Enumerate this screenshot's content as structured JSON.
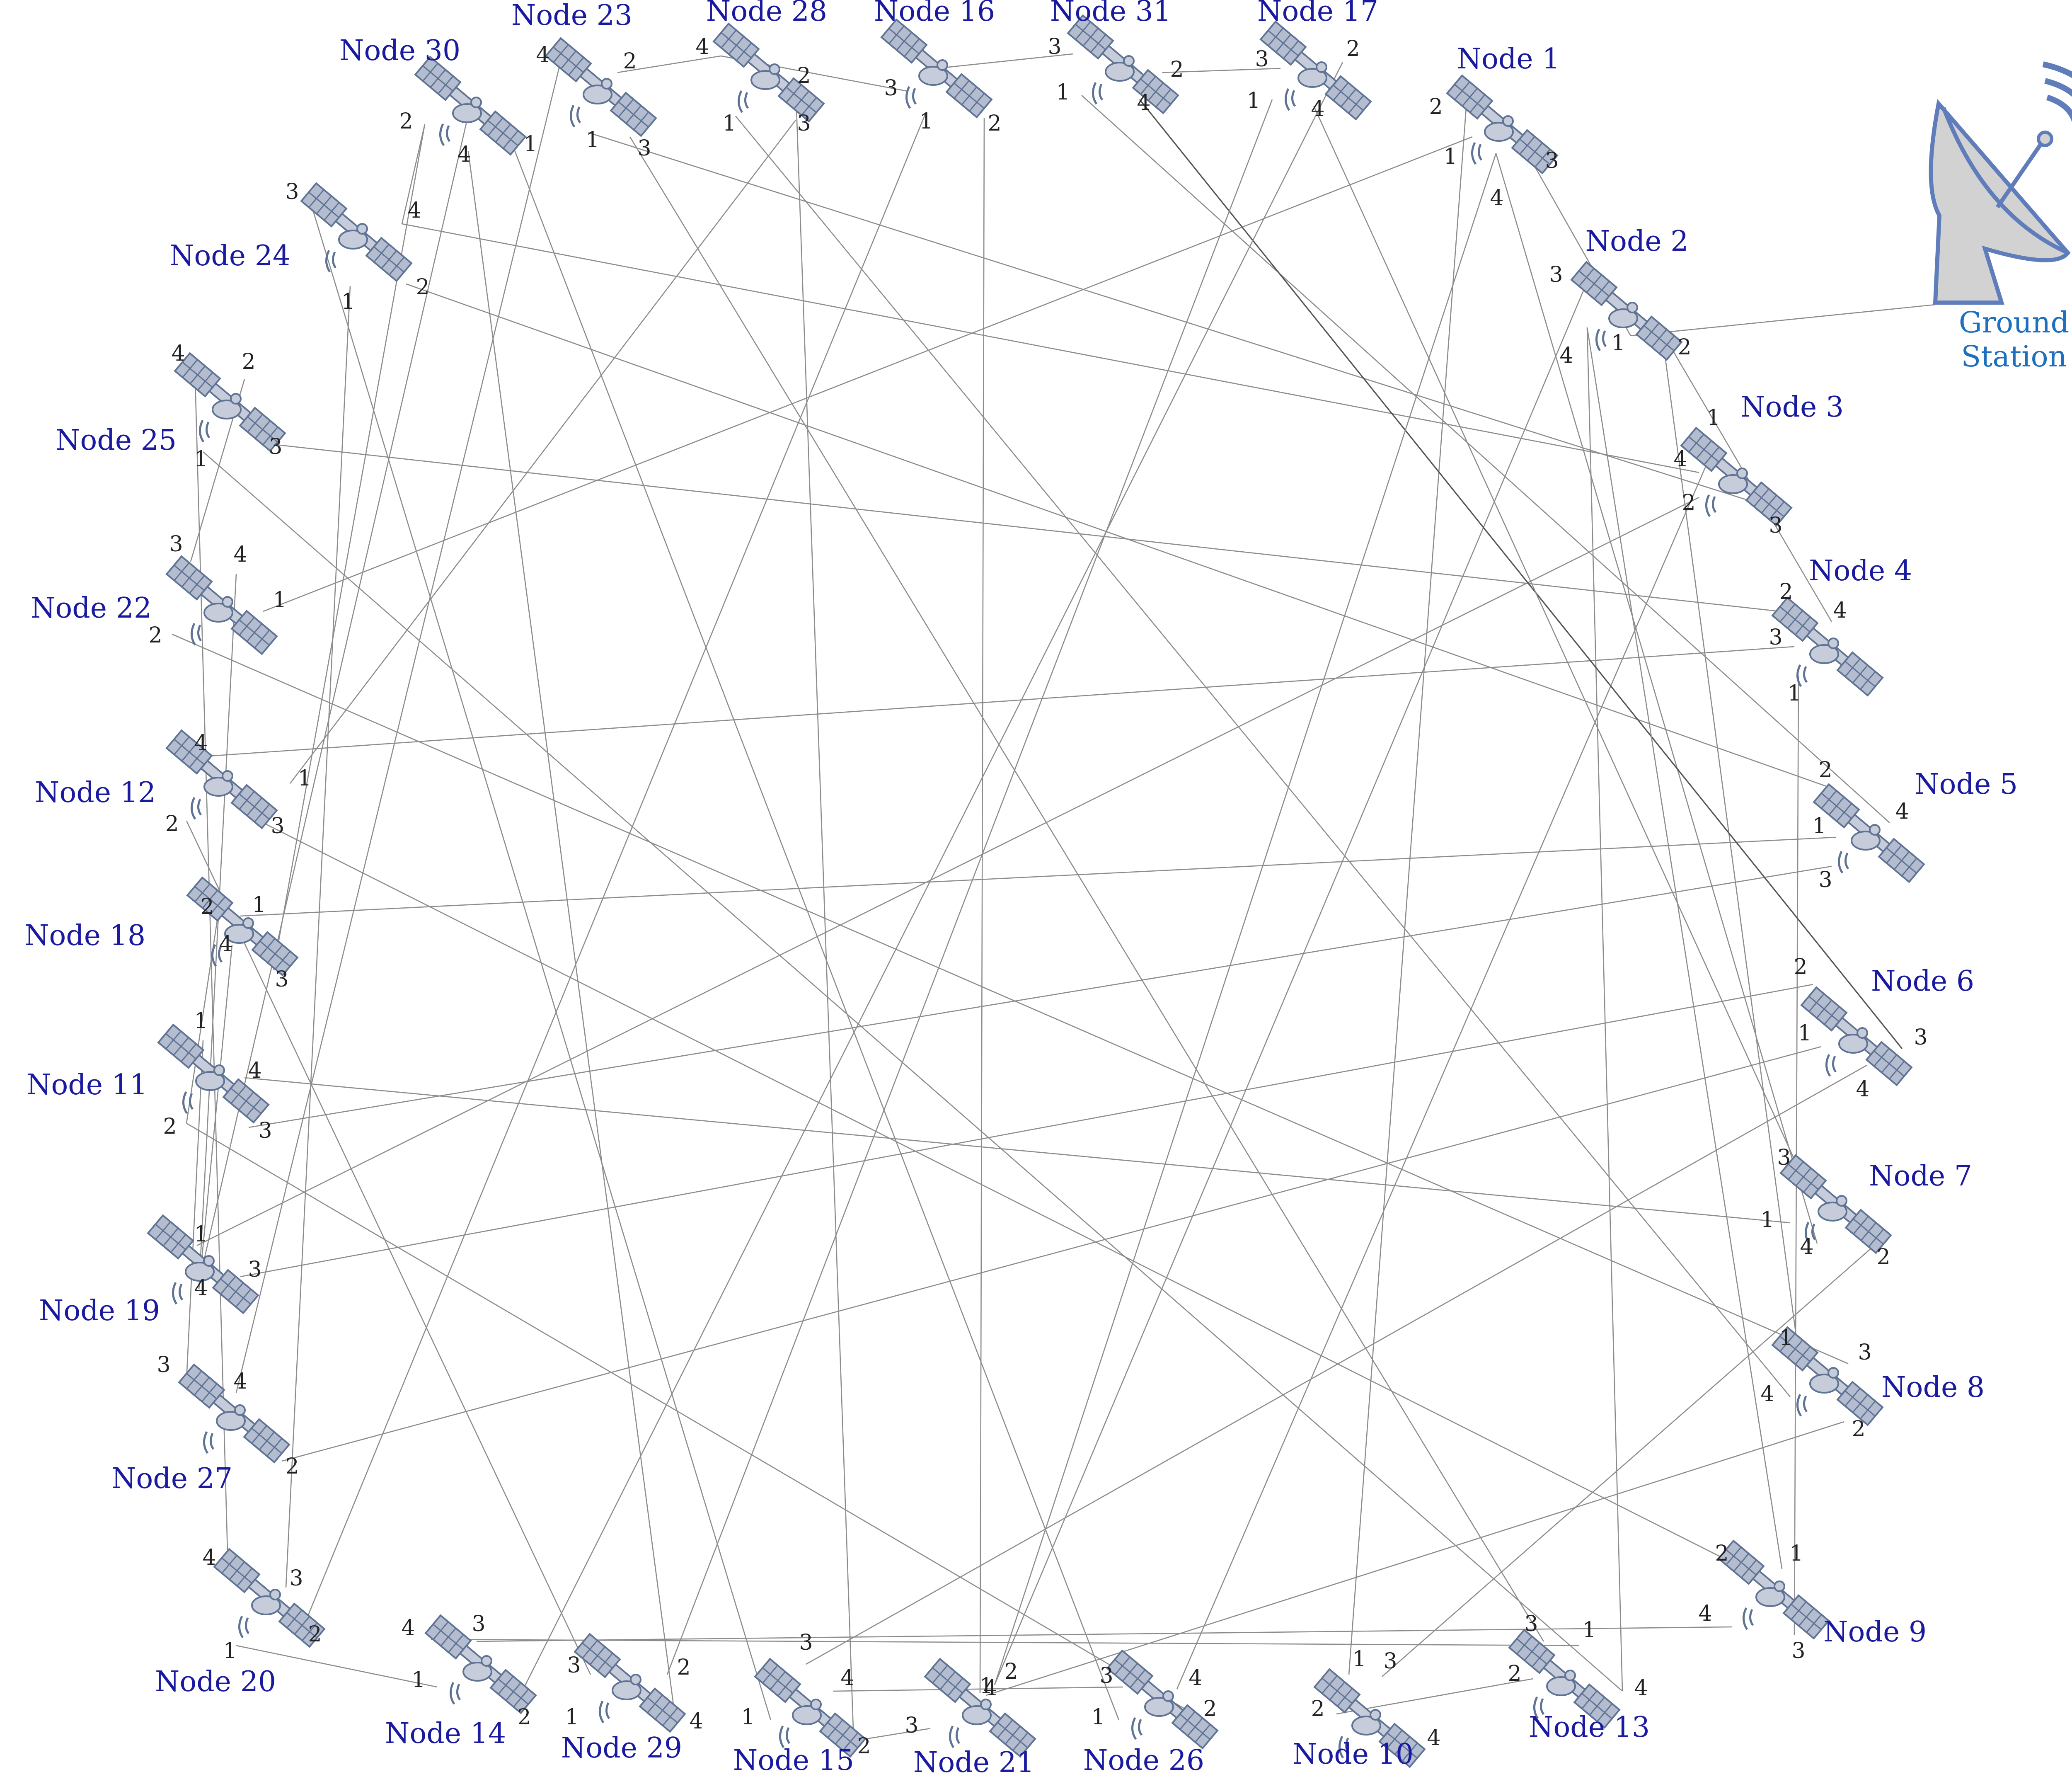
{
  "colors": {
    "node_label": "#1a1aa0",
    "ground_label": "#1f6fbf",
    "satellite_fill": "#b4bccf",
    "satellite_stroke": "#5f7394",
    "dish_fill": "#d2d2d2",
    "dish_stroke": "#5f7dbb",
    "link": "#8c8c8c"
  },
  "ground_station": {
    "line1": "Ground",
    "line2": "Station",
    "icon": "satellite-dish-icon"
  },
  "nodes": [
    {
      "id": 1,
      "label": "Node 1",
      "ports": [
        "1",
        "2",
        "3",
        "4"
      ]
    },
    {
      "id": 2,
      "label": "Node 2",
      "ports": [
        "1",
        "2",
        "3",
        "4"
      ]
    },
    {
      "id": 3,
      "label": "Node 3",
      "ports": [
        "1",
        "2",
        "3",
        "4"
      ]
    },
    {
      "id": 4,
      "label": "Node 4",
      "ports": [
        "1",
        "2",
        "3",
        "4"
      ]
    },
    {
      "id": 5,
      "label": "Node 5",
      "ports": [
        "1",
        "2",
        "3",
        "4"
      ]
    },
    {
      "id": 6,
      "label": "Node 6",
      "ports": [
        "1",
        "2",
        "3",
        "4"
      ]
    },
    {
      "id": 7,
      "label": "Node 7",
      "ports": [
        "1",
        "2",
        "3",
        "4"
      ]
    },
    {
      "id": 8,
      "label": "Node 8",
      "ports": [
        "1",
        "2",
        "3",
        "4"
      ]
    },
    {
      "id": 9,
      "label": "Node 9",
      "ports": [
        "1",
        "2",
        "3",
        "4"
      ]
    },
    {
      "id": 10,
      "label": "Node 10",
      "ports": [
        "1",
        "2",
        "3",
        "4"
      ]
    },
    {
      "id": 13,
      "label": "Node 13",
      "ports": [
        "1",
        "2",
        "3",
        "4"
      ]
    },
    {
      "id": 26,
      "label": "Node 26",
      "ports": [
        "1",
        "2",
        "3",
        "4"
      ]
    },
    {
      "id": 21,
      "label": "Node 21",
      "ports": [
        "1",
        "2",
        "3",
        "4"
      ]
    },
    {
      "id": 15,
      "label": "Node 15",
      "ports": [
        "1",
        "2",
        "3",
        "4"
      ]
    },
    {
      "id": 29,
      "label": "Node 29",
      "ports": [
        "1",
        "2",
        "3",
        "4"
      ]
    },
    {
      "id": 14,
      "label": "Node 14",
      "ports": [
        "1",
        "2",
        "3",
        "4"
      ]
    },
    {
      "id": 20,
      "label": "Node 20",
      "ports": [
        "1",
        "2",
        "3",
        "4"
      ]
    },
    {
      "id": 27,
      "label": "Node 27",
      "ports": [
        "1",
        "2",
        "3",
        "4"
      ]
    },
    {
      "id": 19,
      "label": "Node 19",
      "ports": [
        "1",
        "2",
        "3",
        "4"
      ]
    },
    {
      "id": 11,
      "label": "Node 11",
      "ports": [
        "1",
        "2",
        "3",
        "4"
      ]
    },
    {
      "id": 18,
      "label": "Node 18",
      "ports": [
        "1",
        "2",
        "3",
        "4"
      ]
    },
    {
      "id": 12,
      "label": "Node 12",
      "ports": [
        "1",
        "2",
        "3",
        "4"
      ]
    },
    {
      "id": 22,
      "label": "Node 22",
      "ports": [
        "1",
        "2",
        "3",
        "4"
      ]
    },
    {
      "id": 25,
      "label": "Node 25",
      "ports": [
        "1",
        "2",
        "3",
        "4"
      ]
    },
    {
      "id": 24,
      "label": "Node 24",
      "ports": [
        "1",
        "2",
        "3",
        "4"
      ]
    },
    {
      "id": 30,
      "label": "Node 30",
      "ports": [
        "1",
        "2",
        "3",
        "4"
      ]
    },
    {
      "id": 23,
      "label": "Node 23",
      "ports": [
        "1",
        "2",
        "3",
        "4"
      ]
    },
    {
      "id": 28,
      "label": "Node 28",
      "ports": [
        "1",
        "2",
        "3",
        "4"
      ]
    },
    {
      "id": 16,
      "label": "Node 16",
      "ports": [
        "1",
        "2",
        "3",
        "4"
      ]
    },
    {
      "id": 31,
      "label": "Node 31",
      "ports": [
        "1",
        "2",
        "3",
        "4"
      ]
    },
    {
      "id": 17,
      "label": "Node 17",
      "ports": [
        "1",
        "2",
        "3",
        "4"
      ]
    }
  ],
  "links": [
    {
      "from": "2.1",
      "to": "GS"
    },
    {
      "from": "1.1",
      "to": "22.1"
    },
    {
      "from": "1.2",
      "to": "10.1"
    },
    {
      "from": "1.3",
      "to": "2.1"
    },
    {
      "from": "1.4",
      "to": "7.4"
    },
    {
      "from": "2.2",
      "to": "8.1"
    },
    {
      "from": "2.3",
      "to": "21.2"
    },
    {
      "from": "2.4",
      "to": "13.4"
    },
    {
      "from": "3.1",
      "to": "26.4"
    },
    {
      "from": "3.2",
      "to": "19.1"
    },
    {
      "from": "3.3",
      "to": "23.1"
    },
    {
      "from": "3.4",
      "to": "24.4"
    },
    {
      "from": "4.1",
      "to": "9.3"
    },
    {
      "from": "4.2",
      "to": "25.3"
    },
    {
      "from": "4.3",
      "to": "12.4"
    },
    {
      "from": "4.4",
      "to": "2.2"
    },
    {
      "from": "5.1",
      "to": "18.1"
    },
    {
      "from": "5.2",
      "to": "24.2"
    },
    {
      "from": "5.3",
      "to": "11.3"
    },
    {
      "from": "5.4",
      "to": "31.1"
    },
    {
      "from": "6.1",
      "to": "27.2"
    },
    {
      "from": "6.2",
      "to": "19.3"
    },
    {
      "from": "6.3",
      "to": "31.4"
    },
    {
      "from": "6.4",
      "to": "15.3"
    },
    {
      "from": "7.1",
      "to": "11.4"
    },
    {
      "from": "7.2",
      "to": "10.3"
    },
    {
      "from": "7.3",
      "to": "17.4"
    },
    {
      "from": "8.2",
      "to": "21.4"
    },
    {
      "from": "8.3",
      "to": "22.2"
    },
    {
      "from": "8.4",
      "to": "28.1"
    },
    {
      "from": "9.1",
      "to": "2.4"
    },
    {
      "from": "9.2",
      "to": "12.3"
    },
    {
      "from": "9.4",
      "to": "14.3"
    },
    {
      "from": "10.2",
      "to": "13.2"
    },
    {
      "from": "13.1",
      "to": "14.4"
    },
    {
      "from": "13.3",
      "to": "23.3"
    },
    {
      "from": "13.4",
      "to": "25.1"
    },
    {
      "from": "26.1",
      "to": "30.1"
    },
    {
      "from": "26.2",
      "to": "11.2"
    },
    {
      "from": "26.3",
      "to": "15.4"
    },
    {
      "from": "21.1",
      "to": "16.2"
    },
    {
      "from": "21.3",
      "to": "15.2"
    },
    {
      "from": "15.1",
      "to": "24.3"
    },
    {
      "from": "15.2",
      "to": "28.2"
    },
    {
      "from": "29.2",
      "to": "17.1"
    },
    {
      "from": "29.3",
      "to": "12.2"
    },
    {
      "from": "29.4",
      "to": "30.4"
    },
    {
      "from": "14.1",
      "to": "20.1"
    },
    {
      "from": "14.2",
      "to": "17.2"
    },
    {
      "from": "20.2",
      "to": "16.1"
    },
    {
      "from": "20.3",
      "to": "24.1"
    },
    {
      "from": "20.4",
      "to": "25.4"
    },
    {
      "from": "27.3",
      "to": "11.1"
    },
    {
      "from": "27.4",
      "to": "23.4"
    },
    {
      "from": "19.2",
      "to": "30.3"
    },
    {
      "from": "19.4",
      "to": "18.4"
    },
    {
      "from": "11.2",
      "to": "18.2"
    },
    {
      "from": "18.3",
      "to": "30.2"
    },
    {
      "from": "12.1",
      "to": "28.3"
    },
    {
      "from": "22.3",
      "to": "25.2"
    },
    {
      "from": "22.4",
      "to": "19.4"
    },
    {
      "from": "30.2",
      "to": "24.4"
    },
    {
      "from": "28.4",
      "to": "16.3"
    },
    {
      "from": "23.2",
      "to": "28.4"
    },
    {
      "from": "16.4",
      "to": "31.3"
    },
    {
      "from": "31.2",
      "to": "17.3"
    },
    {
      "from": "1.4",
      "to": "21.2"
    }
  ]
}
